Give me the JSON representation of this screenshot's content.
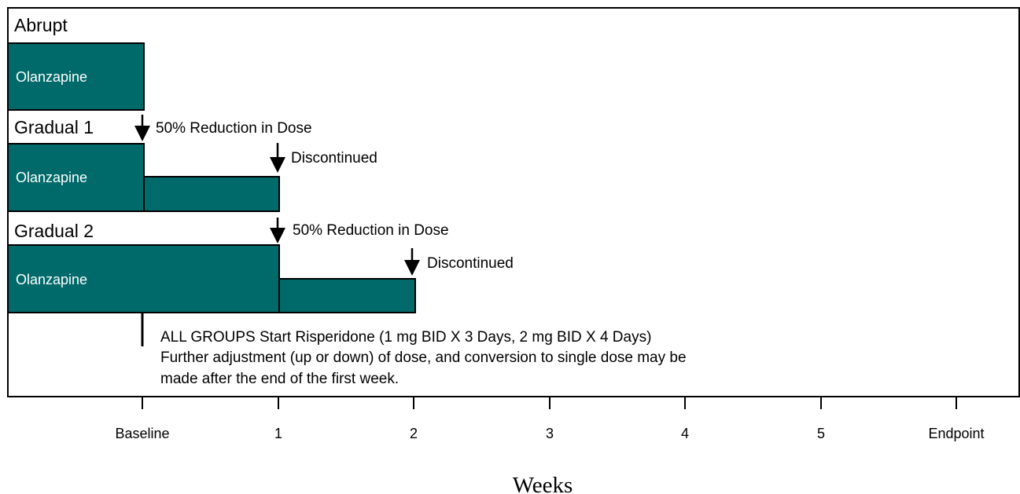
{
  "groups": [
    {
      "label": "Abrupt",
      "bar_label": "Olanzapine"
    },
    {
      "label": "Gradual 1",
      "bar_label": "Olanzapine",
      "annotations": [
        "50% Reduction in Dose",
        "Discontinued"
      ]
    },
    {
      "label": "Gradual 2",
      "bar_label": "Olanzapine",
      "annotations": [
        "50% Reduction in Dose",
        "Discontinued"
      ]
    }
  ],
  "note": [
    "ALL GROUPS Start Risperidone (1 mg BID X 3 Days, 2 mg BID X 4 Days)",
    "Further adjustment (up or down) of dose, and conversion to single dose may be",
    "made after the end of the first week."
  ],
  "axis": {
    "ticks": [
      "Baseline",
      "1",
      "2",
      "3",
      "4",
      "5",
      "Endpoint"
    ],
    "label": "Weeks"
  }
}
